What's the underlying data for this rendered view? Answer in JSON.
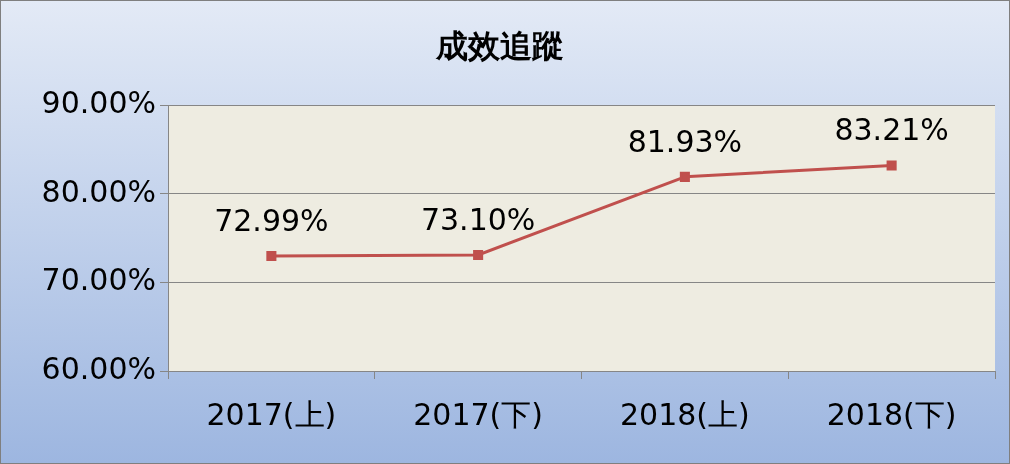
{
  "chart_data": {
    "type": "line",
    "title": "成效追蹤",
    "categories": [
      "2017(上)",
      "2017(下)",
      "2018(上)",
      "2018(下)"
    ],
    "series": [
      {
        "color": "#c0504d",
        "values": [
          72.99,
          73.1,
          81.93,
          83.21
        ],
        "value_labels": [
          "72.99%",
          "73.10%",
          "81.93%",
          "83.21%"
        ]
      }
    ],
    "ylim": [
      60,
      90
    ],
    "yticks": [
      {
        "value": 60,
        "label": "60.00%"
      },
      {
        "value": 70,
        "label": "70.00%"
      },
      {
        "value": 80,
        "label": "80.00%"
      },
      {
        "value": 90,
        "label": "90.00%"
      }
    ],
    "grid": "y",
    "legend": false,
    "marker": "square",
    "line_style": "solid"
  }
}
